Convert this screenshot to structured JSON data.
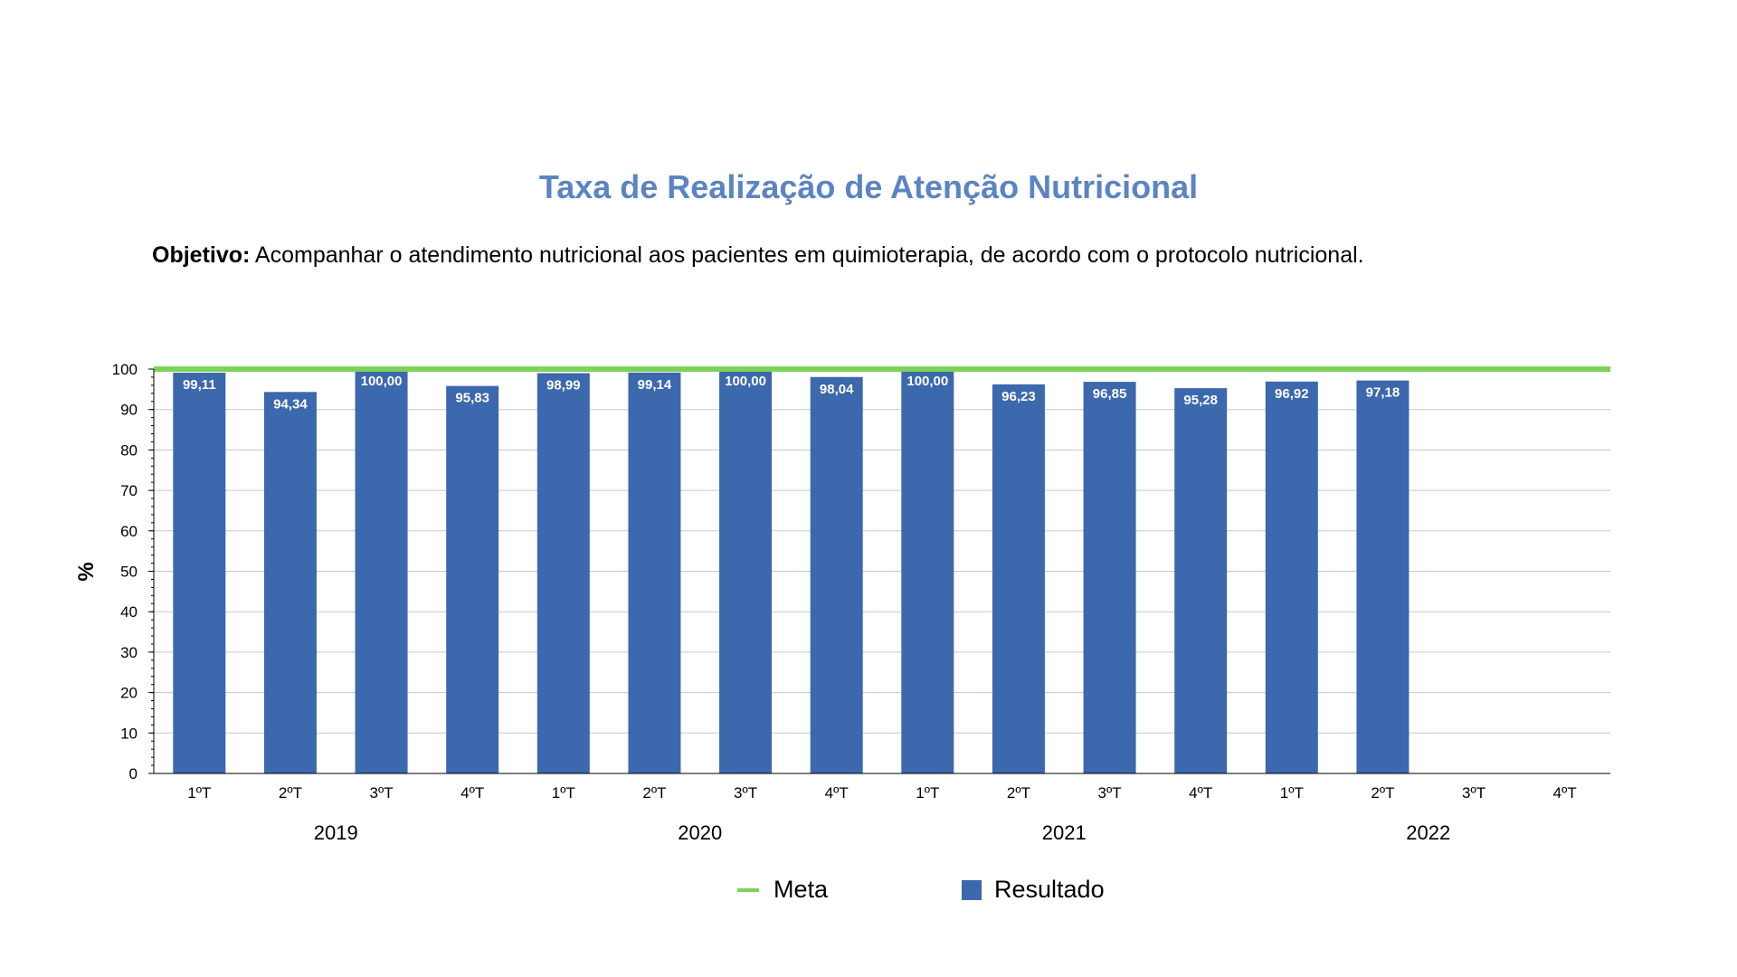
{
  "title": "Taxa de Realização de Atenção Nutricional",
  "objective": {
    "label": "Objetivo:",
    "text": " Acompanhar o atendimento nutricional aos pacientes em quimioterapia, de acordo com o protocolo nutricional."
  },
  "legend": {
    "meta_label": "Meta",
    "resultado_label": "Resultado"
  },
  "colors": {
    "title": "#5b84c4",
    "bar": "#3c68ad",
    "meta_line": "#7dd35a",
    "grid": "#c8c8c8",
    "axis": "#000000",
    "data_label": "#ffffff"
  },
  "chart_data": {
    "type": "bar",
    "title": "Taxa de Realização de Atenção Nutricional",
    "ylabel": "%",
    "xlabel": "",
    "ylim": [
      0,
      100
    ],
    "yticks": [
      0,
      10,
      20,
      30,
      40,
      50,
      60,
      70,
      80,
      90,
      100
    ],
    "grid": true,
    "legend_position": "bottom",
    "categories": [
      "1ºT",
      "2ºT",
      "3ºT",
      "4ºT",
      "1ºT",
      "2ºT",
      "3ºT",
      "4ºT",
      "1ºT",
      "2ºT",
      "3ºT",
      "4ºT",
      "1ºT",
      "2ºT",
      "3ºT",
      "4ºT"
    ],
    "groups": [
      {
        "label": "2019",
        "start": 0,
        "end": 3
      },
      {
        "label": "2020",
        "start": 4,
        "end": 7
      },
      {
        "label": "2021",
        "start": 8,
        "end": 11
      },
      {
        "label": "2022",
        "start": 12,
        "end": 15
      }
    ],
    "series": [
      {
        "name": "Resultado",
        "type": "bar",
        "values": [
          99.11,
          94.34,
          100.0,
          95.83,
          98.99,
          99.14,
          100.0,
          98.04,
          100.0,
          96.23,
          96.85,
          95.28,
          96.92,
          97.18,
          null,
          null
        ],
        "labels": [
          "99,11",
          "94,34",
          "100,00",
          "95,83",
          "98,99",
          "99,14",
          "100,00",
          "98,04",
          "100,00",
          "96,23",
          "96,85",
          "95,28",
          "96,92",
          "97,18",
          "",
          ""
        ]
      },
      {
        "name": "Meta",
        "type": "line",
        "values": [
          100,
          100,
          100,
          100,
          100,
          100,
          100,
          100,
          100,
          100,
          100,
          100,
          100,
          100,
          100,
          100
        ]
      }
    ]
  }
}
